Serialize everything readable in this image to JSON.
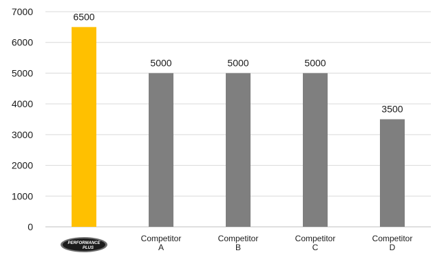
{
  "chart_data": {
    "type": "bar",
    "categories": [
      {
        "label": "",
        "logo": {
          "line1": "PERFORMANCE",
          "line2": "PLUS"
        }
      },
      {
        "label": "Competitor\nA"
      },
      {
        "label": "Competitor\nB"
      },
      {
        "label": "Competitor\nC"
      },
      {
        "label": "Competitor\nD"
      }
    ],
    "values": [
      6500,
      5000,
      5000,
      5000,
      3500
    ],
    "data_labels": [
      "6500",
      "5000",
      "5000",
      "5000",
      "3500"
    ],
    "bar_colors": [
      "#FFC000",
      "#7F7F7F",
      "#7F7F7F",
      "#7F7F7F",
      "#7F7F7F"
    ],
    "ylim": [
      0,
      7000
    ],
    "yticks": [
      0,
      1000,
      2000,
      3000,
      4000,
      5000,
      6000,
      7000
    ],
    "grid": true,
    "title": "",
    "xlabel": "",
    "ylabel": ""
  }
}
